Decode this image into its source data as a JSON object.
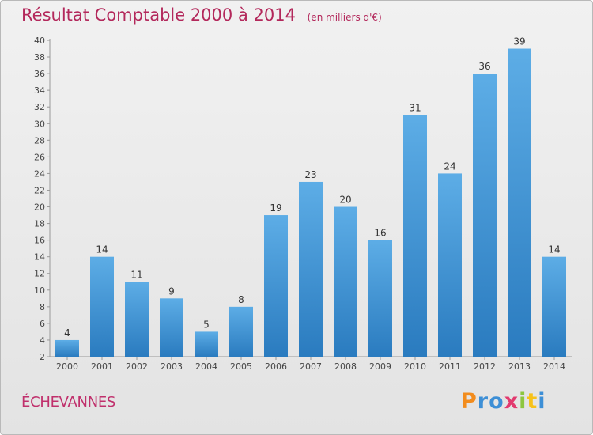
{
  "header": {
    "title": "Résultat Comptable 2000 à 2014",
    "subtitle": "(en milliers d'€)"
  },
  "footer": {
    "place": "ÉCHEVANNES",
    "logo_text": "Proxiti"
  },
  "colors": {
    "title": "#b3285b",
    "bar_top": "#5dade6",
    "bar_bottom": "#2a7bbf"
  },
  "chart_data": {
    "type": "bar",
    "title": "Résultat Comptable 2000 à 2014",
    "subtitle": "(en milliers d'€)",
    "categories": [
      "2000",
      "2001",
      "2002",
      "2003",
      "2004",
      "2005",
      "2006",
      "2007",
      "2008",
      "2009",
      "2010",
      "2011",
      "2012",
      "2013",
      "2014"
    ],
    "values": [
      4,
      14,
      11,
      9,
      5,
      8,
      19,
      23,
      20,
      16,
      31,
      24,
      36,
      39,
      14
    ],
    "ylim": [
      2,
      40
    ],
    "yticks": [
      2,
      4,
      6,
      8,
      10,
      12,
      14,
      16,
      18,
      20,
      22,
      24,
      26,
      28,
      30,
      32,
      34,
      36,
      38,
      40
    ],
    "grid": false,
    "data_labels": true
  }
}
